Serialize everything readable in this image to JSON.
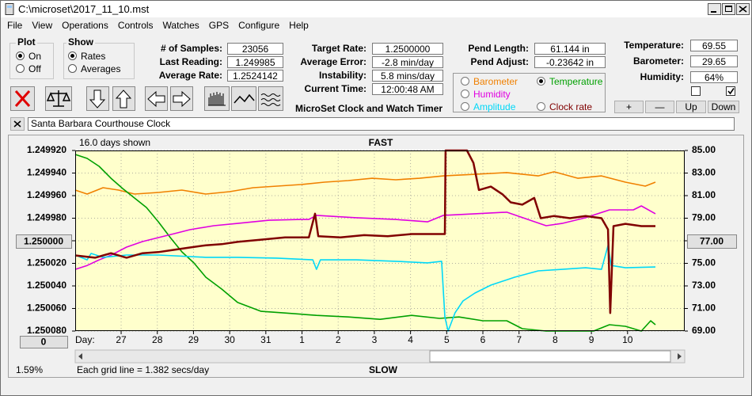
{
  "window": {
    "title": "C:\\microset\\2017_11_10.mst"
  },
  "menu": [
    "File",
    "View",
    "Operations",
    "Controls",
    "Watches",
    "GPS",
    "Configure",
    "Help"
  ],
  "plot_group": {
    "title": "Plot",
    "options": [
      "On",
      "Off"
    ]
  },
  "show_group": {
    "title": "Show",
    "options": [
      "Rates",
      "Averages"
    ]
  },
  "samples_panel": [
    {
      "label": "# of Samples:",
      "value": "23056"
    },
    {
      "label": "Last Reading:",
      "value": "1.249985"
    },
    {
      "label": "Average Rate:",
      "value": "1.2524142"
    }
  ],
  "rate_panel": [
    {
      "label": "Target Rate:",
      "value": "1.2500000"
    },
    {
      "label": "Average Error:",
      "value": "-2.8 min/day"
    },
    {
      "label": "Instability:",
      "value": "5.8 mins/day"
    },
    {
      "label": "Current Time:",
      "value": "12:00:48 AM"
    }
  ],
  "pendulum_panel": [
    {
      "label": "Pend Length:",
      "value": "61.144 in"
    },
    {
      "label": "Pend Adjust:",
      "value": "-0.23642 in"
    }
  ],
  "weather_panel": [
    {
      "label": "Temperature:",
      "value": "69.55"
    },
    {
      "label": "Barometer:",
      "value": "29.65"
    },
    {
      "label": "Humidity:",
      "value": "64%"
    }
  ],
  "plot_buttons": [
    "+",
    "—",
    "Up",
    "Down"
  ],
  "app_caption": "MicroSet Clock and Watch Timer",
  "clock_name": "Santa Barbara Courthouse Clock",
  "chart_data": {
    "type": "line",
    "days_shown": "16.0 days shown",
    "top_label": "FAST",
    "bottom_label": "SLOW",
    "x_label": "Day:",
    "scale_note": "Each grid line = 1.382 secs/day",
    "percent": "1.59%",
    "center_rate_button": "1.250000",
    "center_temp_button": "77.00",
    "offset_button": "0",
    "xlim": [
      -1.27,
      15.58
    ],
    "xticks": [
      {
        "value": 0,
        "label": "27"
      },
      {
        "value": 1,
        "label": "28"
      },
      {
        "value": 2,
        "label": "29"
      },
      {
        "value": 3,
        "label": "30"
      },
      {
        "value": 4,
        "label": "31"
      },
      {
        "value": 5,
        "label": "1"
      },
      {
        "value": 6,
        "label": "2"
      },
      {
        "value": 7,
        "label": "3"
      },
      {
        "value": 8,
        "label": "4"
      },
      {
        "value": 9,
        "label": "5"
      },
      {
        "value": 10,
        "label": "6"
      },
      {
        "value": 11,
        "label": "7"
      },
      {
        "value": 12,
        "label": "8"
      },
      {
        "value": 13,
        "label": "9"
      },
      {
        "value": 14,
        "label": "10"
      }
    ],
    "ylim": [
      1.25008,
      1.24992
    ],
    "yticks": [
      {
        "value": 1.24992,
        "label": "1.249920"
      },
      {
        "value": 1.24994,
        "label": "1.249940"
      },
      {
        "value": 1.24996,
        "label": "1.249960"
      },
      {
        "value": 1.24998,
        "label": "1.249980"
      },
      {
        "value": 1.25,
        "label": "1.250000"
      },
      {
        "value": 1.25002,
        "label": "1.250020"
      },
      {
        "value": 1.25004,
        "label": "1.250040"
      },
      {
        "value": 1.25006,
        "label": "1.250060"
      },
      {
        "value": 1.25008,
        "label": "1.250080"
      }
    ],
    "y2lim": [
      69,
      85
    ],
    "y2ticks": [
      {
        "value": 85,
        "label": "85.00"
      },
      {
        "value": 83,
        "label": "83.00"
      },
      {
        "value": 81,
        "label": "81.00"
      },
      {
        "value": 79,
        "label": "79.00"
      },
      {
        "value": 77,
        "label": "77.00"
      },
      {
        "value": 75,
        "label": "75.00"
      },
      {
        "value": 73,
        "label": "73.00"
      },
      {
        "value": 71,
        "label": "71.00"
      },
      {
        "value": 69,
        "label": "69.00"
      }
    ],
    "grid": true,
    "series": [
      {
        "name": "Barometer",
        "color": "#f08000",
        "axis": "y2",
        "selected": false,
        "x": [
          -1.27,
          -0.94,
          -0.5,
          -0.07,
          0.37,
          1.03,
          1.68,
          2.34,
          3.0,
          3.65,
          4.31,
          4.97,
          5.62,
          6.28,
          6.94,
          7.59,
          8.25,
          8.91,
          9.78,
          10.66,
          11.53,
          11.97,
          12.63,
          13.28,
          13.94,
          14.49,
          14.77
        ],
        "values": [
          81.49,
          81.14,
          81.7,
          81.49,
          81.14,
          81.28,
          81.49,
          81.14,
          81.35,
          81.7,
          81.84,
          81.98,
          82.19,
          82.33,
          82.54,
          82.4,
          82.54,
          82.75,
          82.89,
          83.04,
          82.75,
          83.11,
          82.54,
          82.75,
          82.19,
          81.84,
          82.19
        ]
      },
      {
        "name": "Temperature",
        "color": "#00a000",
        "axis": "y2",
        "selected": true,
        "x": [
          -1.27,
          -0.94,
          -0.61,
          -0.28,
          0.04,
          0.37,
          0.7,
          1.03,
          1.36,
          1.68,
          2.01,
          2.34,
          2.78,
          3.22,
          3.87,
          4.53,
          5.4,
          6.28,
          7.16,
          8.03,
          8.8,
          9.34,
          10.0,
          10.66,
          11.09,
          11.75,
          12.41,
          13.06,
          13.5,
          13.94,
          14.38,
          14.64,
          14.77
        ],
        "values": [
          84.65,
          84.3,
          83.6,
          82.54,
          81.63,
          80.79,
          79.95,
          78.68,
          77.28,
          76.02,
          75.04,
          73.77,
          72.72,
          71.53,
          70.75,
          70.6,
          70.39,
          70.25,
          70.04,
          70.39,
          70.12,
          70.25,
          69.91,
          69.91,
          69.21,
          69,
          69,
          69,
          69.56,
          69.42,
          69,
          69.91,
          69.56
        ]
      },
      {
        "name": "Humidity",
        "color": "#e000e0",
        "axis": "y2",
        "selected": false,
        "x": [
          -1.27,
          -0.94,
          -0.61,
          -0.28,
          0.15,
          0.59,
          1.03,
          1.47,
          1.9,
          2.56,
          3.22,
          4.09,
          4.97,
          5.19,
          5.4,
          6.5,
          7.59,
          8.47,
          8.91,
          9.78,
          10.66,
          11.31,
          11.75,
          12.19,
          12.84,
          13.5,
          14.16,
          14.38,
          14.77
        ],
        "values": [
          74.47,
          74.81,
          75.31,
          75.72,
          76.44,
          76.93,
          77.28,
          77.63,
          77.98,
          78.33,
          78.54,
          78.82,
          78.89,
          78.89,
          79.25,
          79.04,
          78.89,
          78.68,
          79.25,
          79.39,
          79.53,
          78.82,
          78.33,
          78.54,
          79.04,
          79.74,
          79.74,
          80.09,
          79.39
        ]
      },
      {
        "name": "Amplitude",
        "color": "#00d8f8",
        "axis": "y2",
        "selected": false,
        "x": [
          -1.27,
          -0.94,
          -0.83,
          -0.5,
          0.15,
          1.03,
          2.34,
          3.22,
          4.31,
          5.3,
          5.4,
          5.51,
          6.5,
          7.59,
          8.47,
          8.86,
          8.95,
          9.04,
          9.23,
          9.45,
          9.78,
          10.22,
          10.88,
          11.53,
          12.19,
          12.84,
          13.28,
          13.46,
          13.55,
          13.94,
          14.77
        ],
        "values": [
          75.74,
          75.31,
          75.88,
          75.53,
          75.74,
          75.74,
          75.53,
          75.53,
          75.46,
          75.31,
          74.47,
          75.31,
          75.31,
          75.18,
          75.04,
          75.18,
          70.25,
          69,
          70.61,
          71.67,
          72.37,
          73.07,
          73.77,
          74.33,
          74.47,
          74.61,
          74.47,
          76.58,
          74.81,
          74.61,
          74.68
        ]
      },
      {
        "name": "Clock rate",
        "color": "#800000",
        "axis": "y",
        "selected": false,
        "x": [
          -1.27,
          -0.72,
          -0.28,
          0.15,
          0.59,
          1.03,
          1.47,
          1.9,
          2.34,
          2.78,
          3.22,
          3.87,
          4.53,
          5.19,
          5.36,
          5.45,
          6.06,
          6.72,
          7.37,
          8.03,
          8.69,
          8.95,
          8.97,
          9.56,
          9.74,
          9.89,
          10.22,
          10.55,
          10.77,
          11.09,
          11.42,
          11.6,
          11.97,
          12.41,
          12.84,
          13.28,
          13.46,
          13.52,
          13.61,
          13.94,
          14.38,
          14.77
        ],
        "values": [
          1.250013,
          1.250015,
          1.250011,
          1.250015,
          1.250011,
          1.25001,
          1.250008,
          1.250006,
          1.250004,
          1.250003,
          1.250001,
          1.249999,
          1.249997,
          1.249997,
          1.249976,
          1.249996,
          1.249997,
          1.249995,
          1.249996,
          1.249994,
          1.249994,
          1.249994,
          1.24992,
          1.24992,
          1.249931,
          1.249955,
          1.249952,
          1.249959,
          1.249966,
          1.249968,
          1.249962,
          1.24998,
          1.249978,
          1.24998,
          1.249978,
          1.24998,
          1.24999,
          1.250064,
          1.249987,
          1.249985,
          1.249987,
          1.249987
        ]
      }
    ]
  }
}
